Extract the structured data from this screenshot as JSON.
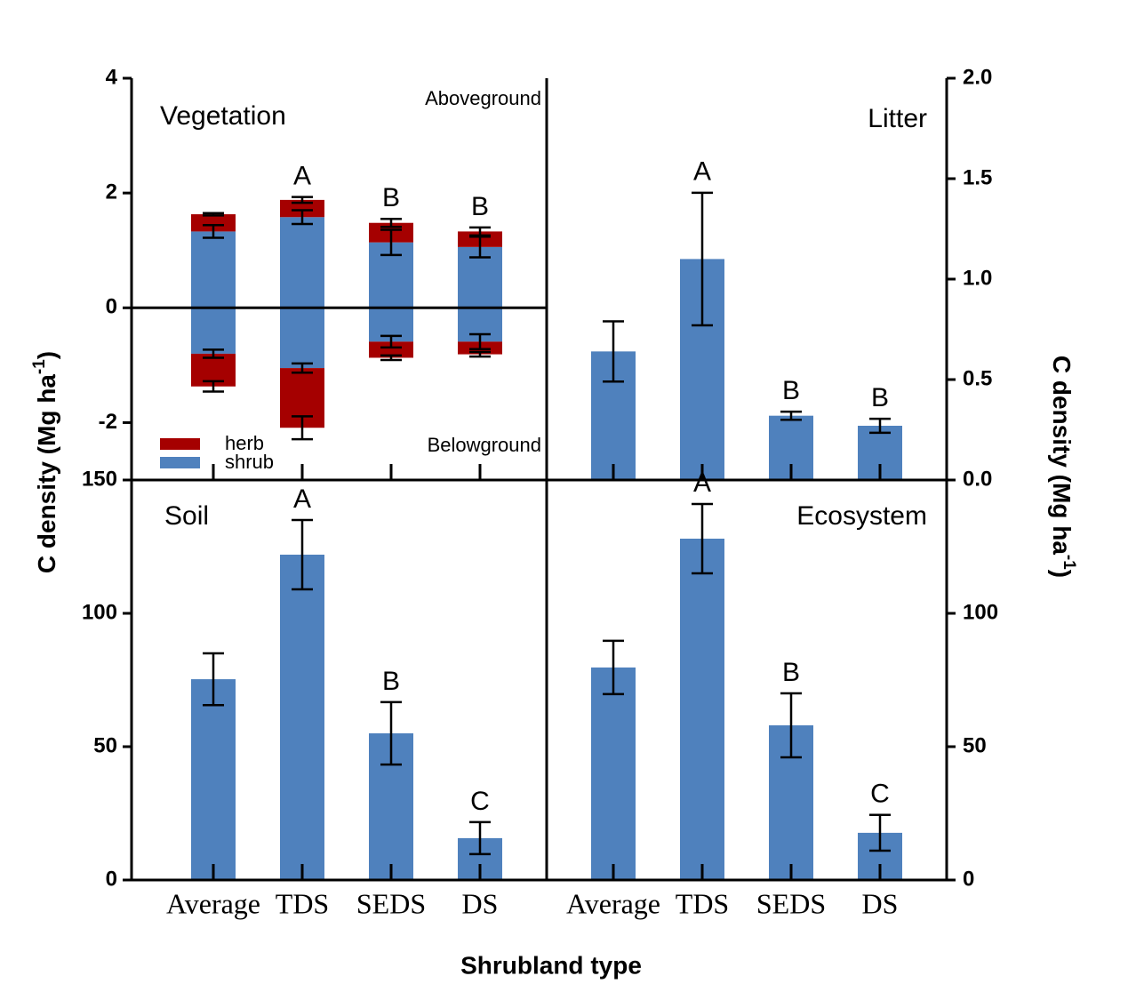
{
  "x_label": "Shrubland type",
  "y_label": {
    "text": "C density (Mg ha",
    "sup": "-1",
    "end": ")"
  },
  "y2_label": {
    "text": "C density (Mg ha",
    "sup": "-1",
    "end": ")"
  },
  "chart_data": [
    {
      "type": "stacked_bar",
      "title": "Vegetation",
      "above_label": "Aboveground",
      "below_label": "Belowground",
      "axis_side": "left",
      "ylim": [
        -3,
        4
      ],
      "yticks": [
        -2,
        0,
        2,
        4
      ],
      "legend": "lower left",
      "annotations": [
        null,
        "A",
        "B",
        "B"
      ],
      "series": [
        {
          "name": "shrub",
          "color": "#4f81bd",
          "values": [
            1.33,
            1.58,
            1.14,
            1.06
          ],
          "errors": [
            0.11,
            0.12,
            0.22,
            0.18
          ],
          "below_values": [
            -0.8,
            -1.05,
            -0.59,
            -0.59
          ],
          "below_errors": [
            0.07,
            0.08,
            0.1,
            0.13
          ]
        },
        {
          "name": "herb",
          "color": "#a50000",
          "values": [
            0.3,
            0.3,
            0.34,
            0.27
          ],
          "errors": [
            0.02,
            0.05,
            0.07,
            0.07
          ],
          "below_values": [
            -0.57,
            -1.04,
            -0.28,
            -0.22
          ],
          "below_errors": [
            0.09,
            0.2,
            0.04,
            0.04
          ]
        }
      ]
    },
    {
      "type": "bar",
      "title": "Litter",
      "axis_side": "right",
      "color": "#4f81bd",
      "ylim": [
        0,
        2
      ],
      "yticks": [
        {
          "value": 0,
          "label": "0.0"
        },
        {
          "value": 0.5,
          "label": "0.5"
        },
        {
          "value": 1,
          "label": "1.0"
        },
        {
          "value": 1.5,
          "label": "1.5"
        },
        {
          "value": 2,
          "label": "2.0"
        }
      ],
      "values": [
        0.64,
        1.1,
        0.32,
        0.27
      ],
      "errors": [
        0.15,
        0.33,
        0.02,
        0.035
      ],
      "annotations": [
        null,
        "A",
        "B",
        "B"
      ]
    },
    {
      "type": "bar",
      "title": "Soil",
      "axis_side": "left",
      "color": "#4f81bd",
      "categories": [
        "Average",
        "TDS",
        "SEDS",
        "DS"
      ],
      "ylim": [
        0,
        150
      ],
      "yticks": [
        0,
        50,
        100,
        150
      ],
      "values": [
        75.3,
        122,
        55,
        15.7
      ],
      "errors": [
        9.7,
        13,
        11.7,
        6
      ],
      "annotations": [
        null,
        "A",
        "B",
        "C"
      ]
    },
    {
      "type": "bar",
      "title": "Ecosystem",
      "axis_side": "right",
      "color": "#4f81bd",
      "categories": [
        "Average",
        "TDS",
        "SEDS",
        "DS"
      ],
      "ylim": [
        0,
        150
      ],
      "yticks": [
        0,
        50,
        100
      ],
      "values": [
        79.7,
        128,
        58,
        17.7
      ],
      "errors": [
        10,
        13,
        12,
        6.7
      ],
      "annotations": [
        null,
        "A",
        "B",
        "C"
      ]
    }
  ]
}
